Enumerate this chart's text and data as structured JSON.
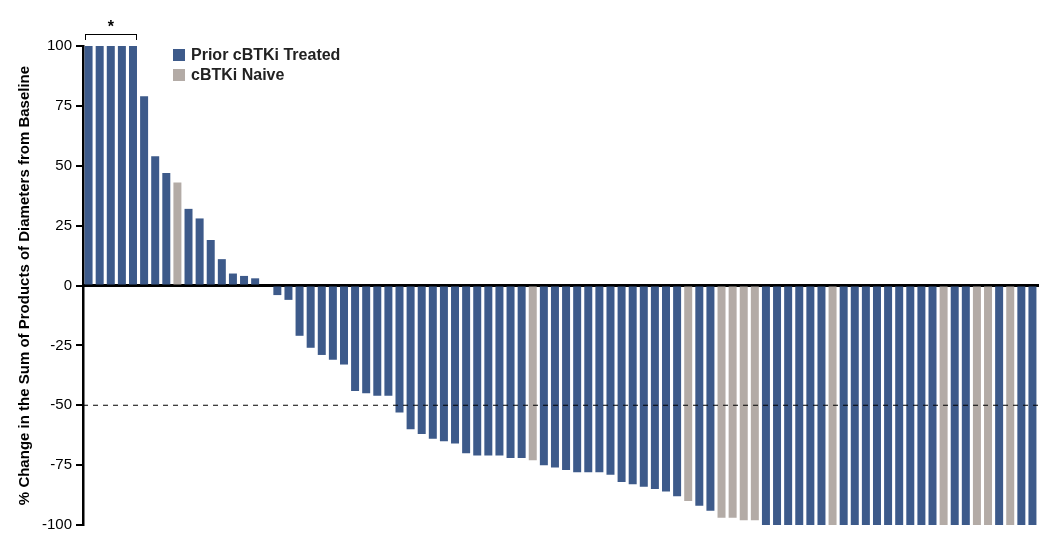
{
  "chart_data": {
    "type": "bar",
    "ylabel": "% Change in the Sum of Products of Diameters from Baseline",
    "categories": [
      null,
      null,
      null,
      null,
      null,
      null,
      null,
      null,
      null,
      null,
      null,
      null,
      null,
      null,
      null,
      null,
      null,
      null,
      null,
      null,
      null,
      null,
      null,
      null,
      null,
      null,
      null,
      null,
      null,
      null,
      null,
      null,
      null,
      null,
      null,
      null,
      null,
      null,
      null,
      null,
      null,
      null,
      null,
      null,
      null,
      null,
      null,
      null,
      null,
      null,
      null,
      null,
      null,
      null,
      null,
      null,
      null,
      null,
      null,
      null,
      null,
      null,
      null,
      null,
      null,
      null,
      null,
      null,
      null,
      null,
      null,
      null,
      null,
      null,
      null,
      null,
      null,
      null,
      null,
      null,
      null,
      null,
      null,
      null,
      null,
      null
    ],
    "series": [
      {
        "name": "Prior cBTKi Treated",
        "color": "#3d5a8a",
        "values": [
          100,
          100,
          100,
          100,
          100,
          79,
          54,
          47,
          null,
          32,
          28,
          19,
          11,
          5,
          4,
          3,
          0,
          -4,
          -6,
          -21,
          -26,
          -29,
          -31,
          -33,
          -44,
          -45,
          -46,
          -46,
          -53,
          -60,
          -62,
          -64,
          -65,
          -66,
          -70,
          -71,
          -71,
          -71,
          -72,
          -72,
          null,
          -75,
          -76,
          -77,
          -78,
          -78,
          -78,
          -79,
          -82,
          -83,
          -84,
          -85,
          -86,
          -88,
          null,
          -92,
          -94,
          null,
          null,
          null,
          null,
          -100,
          -100,
          -100,
          -100,
          -100,
          -100,
          null,
          -100,
          -100,
          -100,
          -100,
          -100,
          -100,
          -100,
          -100,
          -100,
          null,
          -100,
          -100,
          null,
          null,
          -100,
          null,
          -100,
          -100
        ]
      },
      {
        "name": "cBTKi Naive",
        "color": "#b3aba6",
        "values": [
          null,
          null,
          null,
          null,
          null,
          null,
          null,
          null,
          43,
          null,
          null,
          null,
          null,
          null,
          null,
          null,
          null,
          null,
          null,
          null,
          null,
          null,
          null,
          null,
          null,
          null,
          null,
          null,
          null,
          null,
          null,
          null,
          null,
          null,
          null,
          null,
          null,
          null,
          null,
          null,
          -73,
          null,
          null,
          null,
          null,
          null,
          null,
          null,
          null,
          null,
          null,
          null,
          null,
          null,
          -90,
          null,
          null,
          -97,
          -97,
          -98,
          -98,
          null,
          null,
          null,
          null,
          null,
          null,
          -100,
          null,
          null,
          null,
          null,
          null,
          null,
          null,
          null,
          null,
          -100,
          null,
          null,
          -100,
          -100,
          null,
          -100,
          null,
          null
        ]
      }
    ],
    "ylim": [
      -100,
      100
    ],
    "yticks": [
      -100,
      -75,
      -50,
      -25,
      0,
      25,
      50,
      75,
      100
    ],
    "ref_lines": [
      {
        "axis": "y",
        "value": -50,
        "color": "#000000",
        "line_style": "dashed"
      }
    ],
    "annotations": [
      "*"
    ],
    "legend": "top left"
  }
}
